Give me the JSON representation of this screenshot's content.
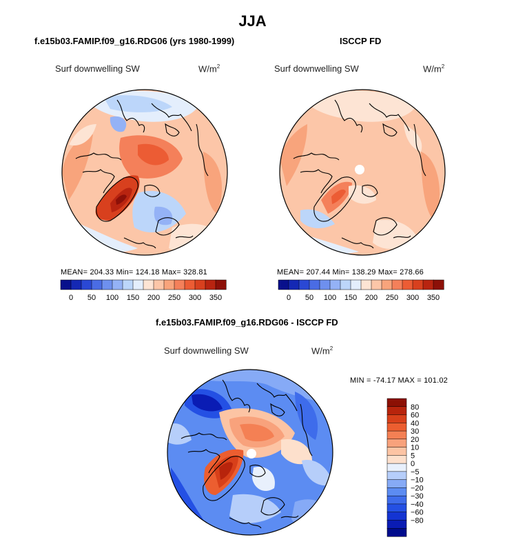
{
  "figure": {
    "title": "JJA"
  },
  "colors": {
    "abs_scale": [
      "#08108c",
      "#1428b4",
      "#2a48d4",
      "#4a6ce4",
      "#6e90ee",
      "#94b2f6",
      "#bcd6fa",
      "#e4eefc",
      "#fde4d4",
      "#fcc6a8",
      "#f8a47c",
      "#f4805a",
      "#ec5c34",
      "#d8401e",
      "#b82410",
      "#8c1008"
    ],
    "diff_scale": [
      "#000c8c",
      "#0a1cb4",
      "#1434d2",
      "#2450e4",
      "#3e6ceb",
      "#5c8cf2",
      "#86aaf6",
      "#b6cefa",
      "#e8f0fc",
      "#fde0cc",
      "#fcc4a4",
      "#f8a27c",
      "#f48054",
      "#ec5e30",
      "#d8401a",
      "#b8240c",
      "#8c1004"
    ],
    "land_line": "#000000"
  },
  "panels": {
    "model": {
      "title": "f.e15b03.FAMIP.f09_g16.RDG06 (yrs 1980-1999)",
      "field": "Surf downwelling SW",
      "units": "W/m",
      "units_sup": "2",
      "stats_text": "MEAN= 204.33   Min= 124.18   Max= 328.81"
    },
    "obs": {
      "title": "ISCCP FD",
      "field": "Surf downwelling SW",
      "units": "W/m",
      "units_sup": "2",
      "stats_text": "MEAN= 207.44   Min= 138.29   Max= 278.66"
    },
    "diff": {
      "title": "f.e15b03.FAMIP.f09_g16.RDG06 - ISCCP FD",
      "field": "Surf downwelling SW",
      "units": "W/m",
      "units_sup": "2",
      "stats_text": "MIN = -74.17  MAX = 101.02"
    }
  },
  "chart_data": [
    {
      "type": "heatmap",
      "projection": "north polar stereographic",
      "name": "model",
      "title": "f.e15b03.FAMIP.f09_g16.RDG06 (yrs 1980-1999)",
      "variable": "Surf downwelling SW",
      "units": "W/m2",
      "mean": 204.33,
      "min": 124.18,
      "max": 328.81,
      "colorbar": {
        "levels": [
          0,
          25,
          50,
          75,
          100,
          125,
          150,
          175,
          200,
          225,
          250,
          275,
          300,
          325,
          350
        ],
        "tick_labels": [
          "0",
          "50",
          "100",
          "150",
          "200",
          "250",
          "300",
          "350"
        ]
      }
    },
    {
      "type": "heatmap",
      "projection": "north polar stereographic",
      "name": "obs",
      "title": "ISCCP FD",
      "variable": "Surf downwelling SW",
      "units": "W/m2",
      "mean": 207.44,
      "min": 138.29,
      "max": 278.66,
      "colorbar": {
        "levels": [
          0,
          25,
          50,
          75,
          100,
          125,
          150,
          175,
          200,
          225,
          250,
          275,
          300,
          325,
          350
        ],
        "tick_labels": [
          "0",
          "50",
          "100",
          "150",
          "200",
          "250",
          "300",
          "350"
        ]
      }
    },
    {
      "type": "heatmap",
      "projection": "north polar stereographic",
      "name": "difference",
      "title": "f.e15b03.FAMIP.f09_g16.RDG06 - ISCCP FD",
      "variable": "Surf downwelling SW",
      "units": "W/m2",
      "min": -74.17,
      "max": 101.02,
      "colorbar": {
        "levels": [
          -80,
          -60,
          -40,
          -30,
          -20,
          -10,
          -5,
          0,
          5,
          10,
          20,
          30,
          40,
          60,
          80
        ],
        "tick_labels": [
          "80",
          "60",
          "40",
          "30",
          "20",
          "10",
          "5",
          "0",
          "−5",
          "−10",
          "−20",
          "−30",
          "−40",
          "−60",
          "−80"
        ]
      }
    }
  ]
}
